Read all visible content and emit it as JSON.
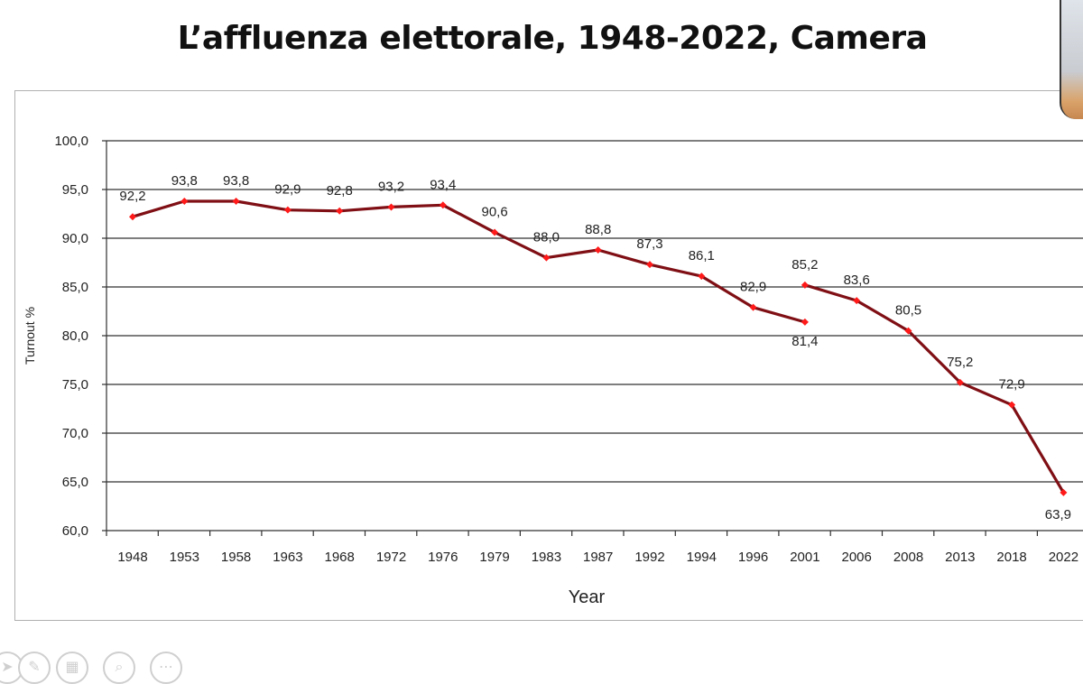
{
  "page_title": "L’affluenza elettorale, 1948-2022, Camera",
  "toolbar": {
    "icons": [
      "pointer-icon",
      "pen-icon",
      "slides-icon",
      "zoom-icon",
      "more-icon"
    ]
  },
  "chart_data": {
    "type": "line",
    "title": "",
    "xlabel": "Year",
    "ylabel": "Turnout %",
    "ylim": [
      60,
      100
    ],
    "yticks": [
      "60,0",
      "65,0",
      "70,0",
      "75,0",
      "80,0",
      "85,0",
      "90,0",
      "95,0",
      "100,0"
    ],
    "ytick_values": [
      60,
      65,
      70,
      75,
      80,
      85,
      90,
      95,
      100
    ],
    "categories": [
      "1948",
      "1953",
      "1958",
      "1963",
      "1968",
      "1972",
      "1976",
      "1979",
      "1983",
      "1987",
      "1992",
      "1994",
      "1996",
      "2001",
      "2006",
      "2008",
      "2013",
      "2018",
      "2022"
    ],
    "values": [
      92.2,
      93.8,
      93.8,
      92.9,
      92.8,
      93.2,
      93.4,
      90.6,
      88.0,
      88.8,
      87.3,
      86.1,
      82.9,
      81.4,
      85.2,
      83.6,
      80.5,
      75.2,
      72.9,
      63.9
    ],
    "point_years": [
      "1948",
      "1953",
      "1958",
      "1963",
      "1968",
      "1972",
      "1976",
      "1979",
      "1983",
      "1987",
      "1992",
      "1994",
      "1996",
      "2001",
      "2001",
      "2006",
      "2008",
      "2013",
      "2018",
      "2022"
    ],
    "labels": [
      "92,2",
      "93,8",
      "93,8",
      "92,9",
      "92,8",
      "93,2",
      "93,4",
      "90,6",
      "88,0",
      "88,8",
      "87,3",
      "86,1",
      "82,9",
      "81,4",
      "85,2",
      "83,6",
      "80,5",
      "75,2",
      "72,9",
      "63,9"
    ],
    "segments": [
      [
        0,
        13
      ],
      [
        14,
        19
      ]
    ],
    "grid": true,
    "line_color": "#7f0f14",
    "marker_color": "#ff1a1a"
  }
}
